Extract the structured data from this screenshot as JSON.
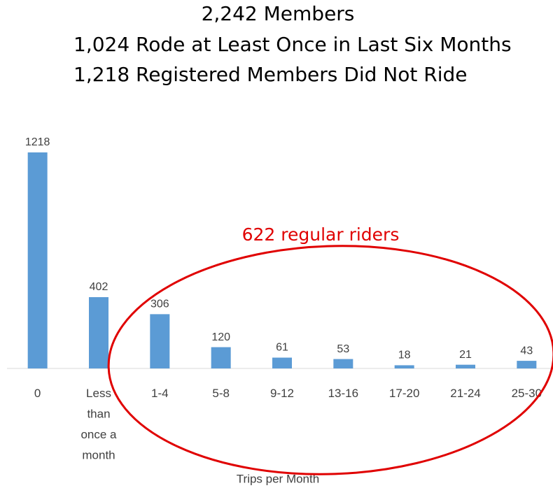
{
  "chart_data": {
    "type": "bar",
    "title": "2,242 Members",
    "subtitle": [
      "1,024 Rode at Least Once in Last Six Months",
      "1,218 Registered Members Did Not Ride"
    ],
    "categories": [
      "0",
      "Less than once a month",
      "1-4",
      "5-8",
      "9-12",
      "13-16",
      "17-20",
      "21-24",
      "25-30"
    ],
    "values": [
      1218,
      402,
      306,
      120,
      61,
      53,
      18,
      21,
      43
    ],
    "color": "#5b9bd5",
    "ylim": [
      0,
      1218
    ],
    "x_label": "Trips per Month",
    "annotation": "622 regular riders"
  }
}
